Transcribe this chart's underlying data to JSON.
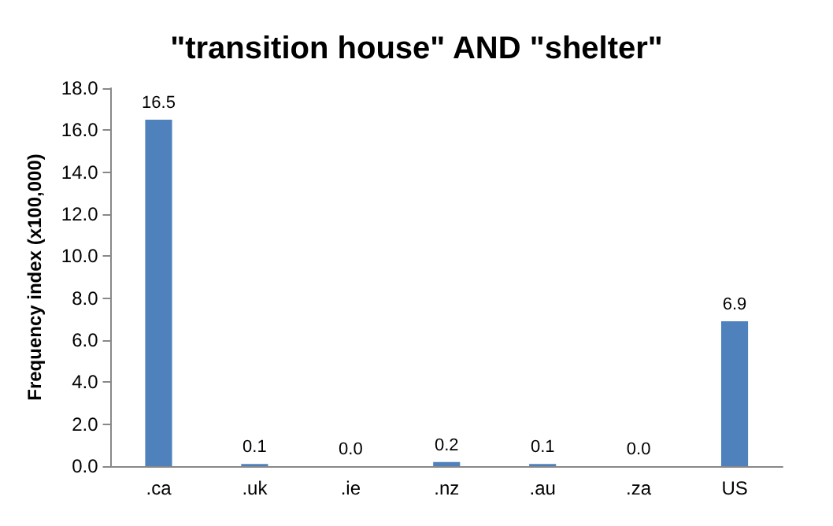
{
  "chart_data": {
    "type": "bar",
    "title": "\"transition house\" AND \"shelter\"",
    "ylabel": "Frequency index (x100,000)",
    "categories": [
      ".ca",
      ".uk",
      ".ie",
      ".nz",
      ".au",
      ".za",
      "US"
    ],
    "values": [
      16.5,
      0.1,
      0.0,
      0.2,
      0.1,
      0.0,
      6.9
    ],
    "value_labels": [
      "16.5",
      "0.1",
      "0.0",
      "0.2",
      "0.1",
      "0.0",
      "6.9"
    ],
    "color": "#4f81bd",
    "ylim": [
      0,
      18
    ],
    "yticks": [
      {
        "value": 0,
        "label": "0.0"
      },
      {
        "value": 2,
        "label": "2.0"
      },
      {
        "value": 4,
        "label": "4.0"
      },
      {
        "value": 6,
        "label": "6.0"
      },
      {
        "value": 8,
        "label": "8.0"
      },
      {
        "value": 10,
        "label": "10.0"
      },
      {
        "value": 12,
        "label": "12.0"
      },
      {
        "value": 14,
        "label": "14.0"
      },
      {
        "value": 16,
        "label": "16.0"
      },
      {
        "value": 18,
        "label": "18.0"
      }
    ],
    "grid": false
  }
}
